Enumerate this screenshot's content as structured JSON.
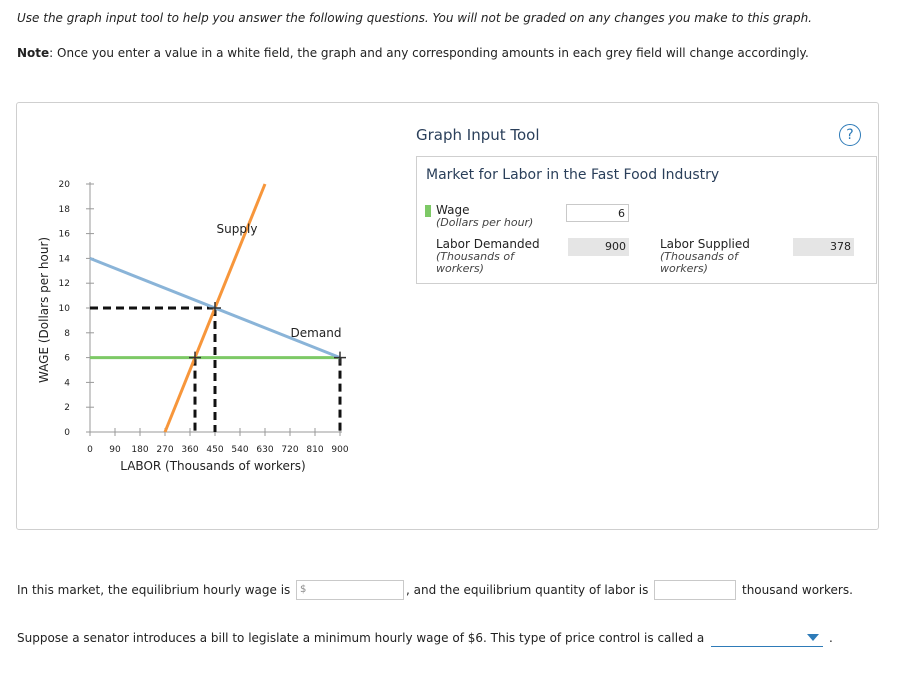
{
  "instructions": "Use the graph input tool to help you answer the following questions. You will not be graded on any changes you make to this graph.",
  "note": {
    "label": "Note",
    "text": ": Once you enter a value in a white field, the graph and any corresponding amounts in each grey field will change accordingly."
  },
  "tool": {
    "title": "Graph Input Tool",
    "help_symbol": "?",
    "box_title": "Market for Labor in the Fast Food Industry",
    "wage": {
      "label": "Wage",
      "sub": "(Dollars per hour)",
      "value": "6"
    },
    "labor_demanded": {
      "label": "Labor Demanded",
      "sub1": "(Thousands of",
      "sub2": "workers)",
      "value": "900"
    },
    "labor_supplied": {
      "label": "Labor Supplied",
      "sub1": "(Thousands of",
      "sub2": "workers)",
      "value": "378"
    }
  },
  "colors": {
    "supply": "#f7963b",
    "demand": "#8ab4d8",
    "wage_line": "#7dc966",
    "dashed": "#111111"
  },
  "chart_data": {
    "type": "line",
    "xlabel": "LABOR (Thousands of workers)",
    "ylabel": "WAGE (Dollars per hour)",
    "xlim": [
      0,
      900
    ],
    "ylim": [
      0,
      20
    ],
    "xticks": [
      "0",
      "90",
      "180",
      "270",
      "360",
      "450",
      "540",
      "630",
      "720",
      "810",
      "900"
    ],
    "yticks": [
      "0",
      "2",
      "4",
      "6",
      "8",
      "10",
      "12",
      "14",
      "16",
      "18",
      "20"
    ],
    "series": [
      {
        "name": "Supply",
        "x": [
          270,
          630
        ],
        "y": [
          0,
          20
        ]
      },
      {
        "name": "Demand",
        "x": [
          0,
          900
        ],
        "y": [
          14,
          6
        ]
      }
    ],
    "wage_line": {
      "y": 6,
      "x": [
        0,
        900
      ]
    },
    "equilibrium": {
      "x": 450,
      "y": 10
    },
    "markers": [
      {
        "x": 378,
        "y": 6
      },
      {
        "x": 900,
        "y": 6
      },
      {
        "x": 450,
        "y": 10
      }
    ]
  },
  "question1": {
    "text_before": "In this market, the equilibrium hourly wage is",
    "dollar_placeholder": "$",
    "text_middle": ", and the equilibrium quantity of labor is",
    "text_after": "thousand workers."
  },
  "question2": {
    "text": "Suppose a senator introduces a bill to legislate a minimum hourly wage of $6. This type of price control is called a",
    "dropdown_value": "",
    "end": "."
  }
}
